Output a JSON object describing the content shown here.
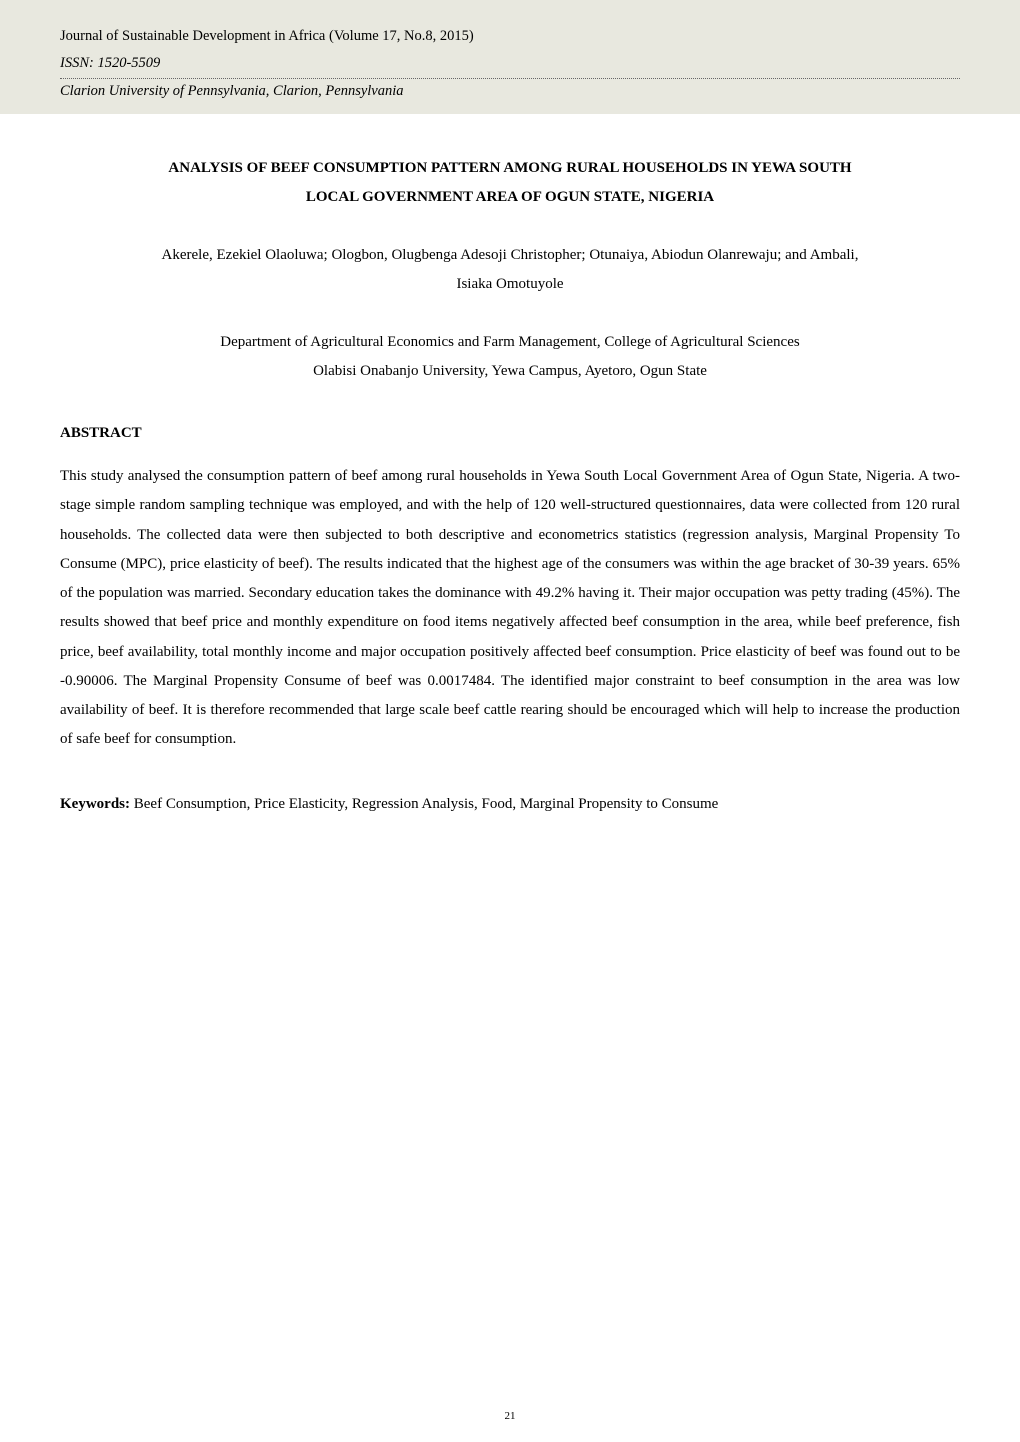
{
  "header": {
    "journal_line": "Journal of Sustainable Development in Africa  (Volume 17, No.8, 2015)",
    "issn": "ISSN: 1520-5509",
    "university": "Clarion University of Pennsylvania, Clarion, Pennsylvania"
  },
  "title": {
    "line1": "ANALYSIS OF BEEF CONSUMPTION PATTERN AMONG RURAL HOUSEHOLDS IN YEWA SOUTH",
    "line2": "LOCAL GOVERNMENT AREA OF OGUN STATE, NIGERIA"
  },
  "authors": {
    "line1": "Akerele, Ezekiel Olaoluwa; Ologbon, Olugbenga Adesoji Christopher; Otunaiya, Abiodun Olanrewaju; and Ambali,",
    "line2": "Isiaka Omotuyole"
  },
  "affiliation": {
    "line1": "Department of Agricultural Economics and Farm Management, College of Agricultural Sciences",
    "line2": "Olabisi Onabanjo University, Yewa Campus, Ayetoro, Ogun State"
  },
  "abstract": {
    "heading": "ABSTRACT",
    "body": "This study analysed the consumption pattern of beef among rural households in Yewa South Local Government Area of Ogun State, Nigeria. A two-stage simple random sampling technique was employed, and with the help of 120 well-structured questionnaires, data were collected from 120 rural households. The collected data were then subjected to both descriptive and econometrics statistics (regression analysis, Marginal Propensity To Consume (MPC), price elasticity of beef). The results indicated that the highest age of the consumers was within the age bracket of 30-39 years. 65% of the population was married. Secondary education takes the dominance with 49.2% having it. Their major occupation was petty trading (45%). The results showed that beef price and monthly expenditure on food items negatively affected beef consumption in the area, while beef preference, fish price, beef availability, total monthly income and major occupation positively affected beef consumption. Price elasticity of beef was found out to be -0.90006. The Marginal Propensity Consume of beef was 0.0017484. The identified major constraint to beef consumption in the area was low availability of beef. It is therefore recommended that large scale beef cattle rearing should be encouraged which will help to increase the production of safe beef for consumption."
  },
  "keywords": {
    "label": "Keywords:",
    "text": " Beef Consumption, Price Elasticity, Regression Analysis, Food, Marginal Propensity to Consume"
  },
  "page_number": "21",
  "styling": {
    "header_bg": "#e8e8df",
    "body_bg": "#ffffff",
    "text_color": "#000000",
    "font_family": "Times New Roman",
    "body_fontsize": 15,
    "header_fontsize": 14.5,
    "page_number_fontsize": 11,
    "line_height_body": 1.95,
    "separator_style": "dotted",
    "separator_color": "#666666"
  }
}
